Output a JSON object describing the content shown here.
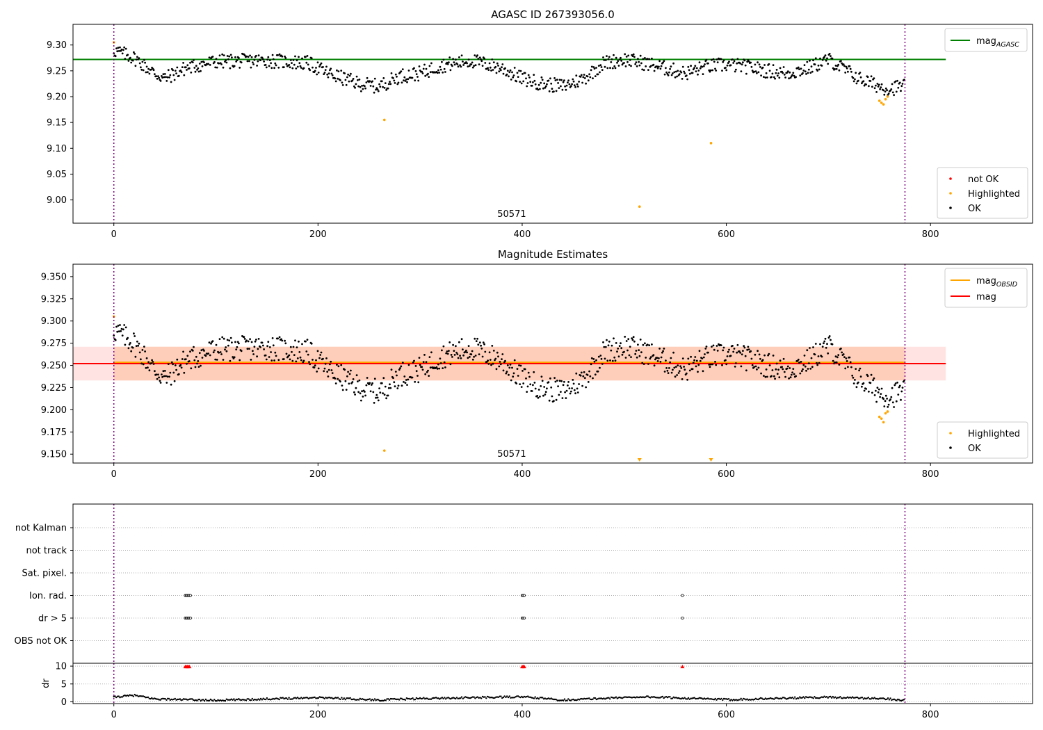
{
  "chart_data": [
    {
      "type": "scatter",
      "title": "AGASC ID 267393056.0",
      "xlim": [
        -40,
        900
      ],
      "ylim": [
        8.955,
        9.34
      ],
      "xticks": [
        0,
        200,
        400,
        600,
        800
      ],
      "yticks": [
        9.0,
        9.05,
        9.1,
        9.15,
        9.2,
        9.25,
        9.3
      ],
      "ytick_decimals": 2,
      "vlines": [
        0,
        775
      ],
      "annotation": {
        "text": "50571",
        "x": 385
      },
      "hlines": [
        {
          "name": "mag_AGASC",
          "y": 9.272,
          "x0": -40,
          "x1": 815,
          "color": "#008000"
        }
      ],
      "legend_lines": [
        {
          "name": "mag",
          "sub": "AGASC",
          "color": "#008000",
          "placement": "top-right"
        }
      ],
      "legend_points": [
        {
          "name": "not OK",
          "color": "#ff0000"
        },
        {
          "name": "Highlighted",
          "color": "#ffa500"
        },
        {
          "name": "OK",
          "color": "#000000"
        }
      ],
      "highlighted": [
        [
          0,
          9.305
        ],
        [
          265,
          9.155
        ],
        [
          515,
          8.987
        ],
        [
          585,
          9.11
        ],
        [
          750,
          9.192
        ],
        [
          752,
          9.188
        ],
        [
          754,
          9.185
        ],
        [
          756,
          9.195
        ],
        [
          758,
          9.2
        ]
      ],
      "ok_series_note": "dense OK points follow the magnitude curve",
      "ok_curve": [
        [
          0,
          9.29
        ],
        [
          20,
          9.275
        ],
        [
          40,
          9.245
        ],
        [
          50,
          9.235
        ],
        [
          70,
          9.255
        ],
        [
          100,
          9.268
        ],
        [
          150,
          9.27
        ],
        [
          190,
          9.265
        ],
        [
          210,
          9.245
        ],
        [
          240,
          9.225
        ],
        [
          260,
          9.22
        ],
        [
          280,
          9.24
        ],
        [
          300,
          9.245
        ],
        [
          320,
          9.26
        ],
        [
          350,
          9.27
        ],
        [
          380,
          9.255
        ],
        [
          400,
          9.235
        ],
        [
          420,
          9.225
        ],
        [
          440,
          9.22
        ],
        [
          460,
          9.235
        ],
        [
          480,
          9.265
        ],
        [
          500,
          9.272
        ],
        [
          520,
          9.265
        ],
        [
          540,
          9.255
        ],
        [
          560,
          9.245
        ],
        [
          580,
          9.258
        ],
        [
          600,
          9.262
        ],
        [
          620,
          9.258
        ],
        [
          640,
          9.25
        ],
        [
          660,
          9.245
        ],
        [
          680,
          9.255
        ],
        [
          700,
          9.272
        ],
        [
          710,
          9.26
        ],
        [
          730,
          9.235
        ],
        [
          750,
          9.22
        ],
        [
          760,
          9.215
        ],
        [
          775,
          9.222
        ]
      ]
    },
    {
      "type": "scatter",
      "title": "Magnitude Estimates",
      "xlim": [
        -40,
        900
      ],
      "ylim": [
        9.14,
        9.364
      ],
      "xticks": [
        0,
        200,
        400,
        600,
        800
      ],
      "yticks": [
        9.15,
        9.175,
        9.2,
        9.225,
        9.25,
        9.275,
        9.3,
        9.325,
        9.35
      ],
      "ytick_decimals": 3,
      "vlines": [
        0,
        775
      ],
      "annotation": {
        "text": "50571",
        "x": 385
      },
      "bands": [
        {
          "x0": -40,
          "x1": 815,
          "y0": 9.233,
          "y1": 9.271,
          "color": "#ffcccc",
          "opacity": 0.55
        },
        {
          "x0": 0,
          "x1": 775,
          "y0": 9.233,
          "y1": 9.271,
          "color": "#ffb38a",
          "opacity": 0.45
        }
      ],
      "hlines": [
        {
          "name": "mag_OBSID",
          "y": 9.2535,
          "x0": 0,
          "x1": 775,
          "color": "#ffa500"
        },
        {
          "name": "mag",
          "y": 9.252,
          "x0": -40,
          "x1": 815,
          "color": "#ff0000"
        }
      ],
      "legend_lines": [
        {
          "name": "mag",
          "sub": "OBSID",
          "color": "#ffa500",
          "placement": "top-right"
        },
        {
          "name": "mag",
          "sub": "",
          "color": "#ff0000",
          "placement": "top-right"
        }
      ],
      "legend_points": [
        {
          "name": "Highlighted",
          "color": "#ffa500"
        },
        {
          "name": "OK",
          "color": "#000000"
        }
      ],
      "highlighted": [
        [
          0,
          9.305
        ],
        [
          265,
          9.154
        ],
        [
          750,
          9.192
        ],
        [
          752,
          9.19
        ],
        [
          754,
          9.186
        ],
        [
          756,
          9.196
        ],
        [
          758,
          9.198
        ]
      ],
      "offscale_markers": [
        515,
        585
      ],
      "ok_curve": [
        [
          0,
          9.29
        ],
        [
          20,
          9.275
        ],
        [
          40,
          9.245
        ],
        [
          50,
          9.235
        ],
        [
          70,
          9.255
        ],
        [
          100,
          9.268
        ],
        [
          150,
          9.27
        ],
        [
          190,
          9.265
        ],
        [
          210,
          9.245
        ],
        [
          240,
          9.225
        ],
        [
          260,
          9.22
        ],
        [
          280,
          9.24
        ],
        [
          300,
          9.245
        ],
        [
          320,
          9.26
        ],
        [
          350,
          9.27
        ],
        [
          380,
          9.255
        ],
        [
          400,
          9.235
        ],
        [
          420,
          9.225
        ],
        [
          440,
          9.22
        ],
        [
          460,
          9.235
        ],
        [
          480,
          9.265
        ],
        [
          500,
          9.272
        ],
        [
          520,
          9.265
        ],
        [
          540,
          9.255
        ],
        [
          560,
          9.245
        ],
        [
          580,
          9.258
        ],
        [
          600,
          9.262
        ],
        [
          620,
          9.258
        ],
        [
          640,
          9.25
        ],
        [
          660,
          9.245
        ],
        [
          680,
          9.255
        ],
        [
          700,
          9.272
        ],
        [
          710,
          9.26
        ],
        [
          730,
          9.235
        ],
        [
          750,
          9.22
        ],
        [
          760,
          9.215
        ],
        [
          775,
          9.222
        ]
      ]
    },
    {
      "type": "scatter",
      "xlim": [
        -40,
        900
      ],
      "xticks": [
        0,
        200,
        400,
        600,
        800
      ],
      "vlines": [
        0,
        775
      ],
      "flag_rows": [
        "not Kalman",
        "not track",
        "Sat. pixel.",
        "Ion. rad.",
        "dr > 5",
        "OBS not OK"
      ],
      "flag_points": [
        {
          "row": "Ion. rad.",
          "x": [
            70,
            71,
            72,
            73,
            74,
            75,
            400,
            401,
            402,
            557
          ]
        },
        {
          "row": "dr > 5",
          "x": [
            70,
            71,
            72,
            73,
            74,
            75,
            400,
            401,
            402,
            557
          ]
        }
      ]
    },
    {
      "type": "scatter",
      "ylabel": "dr",
      "xlim": [
        -40,
        900
      ],
      "ylim": [
        -0.5,
        10.8
      ],
      "xticks": [
        0,
        200,
        400,
        600,
        800
      ],
      "yticks": [
        0,
        5,
        10
      ],
      "vlines": [
        0,
        775
      ],
      "red_markers_x": [
        70,
        71,
        72,
        73,
        74,
        400,
        401,
        402,
        557
      ],
      "baseline": [
        [
          0,
          1.3
        ],
        [
          20,
          1.8
        ],
        [
          40,
          0.8
        ],
        [
          100,
          0.4
        ],
        [
          200,
          1.2
        ],
        [
          260,
          0.5
        ],
        [
          300,
          0.9
        ],
        [
          400,
          1.4
        ],
        [
          440,
          0.5
        ],
        [
          500,
          1.2
        ],
        [
          520,
          1.4
        ],
        [
          600,
          0.6
        ],
        [
          700,
          1.3
        ],
        [
          760,
          0.8
        ],
        [
          775,
          0.4
        ]
      ]
    }
  ]
}
